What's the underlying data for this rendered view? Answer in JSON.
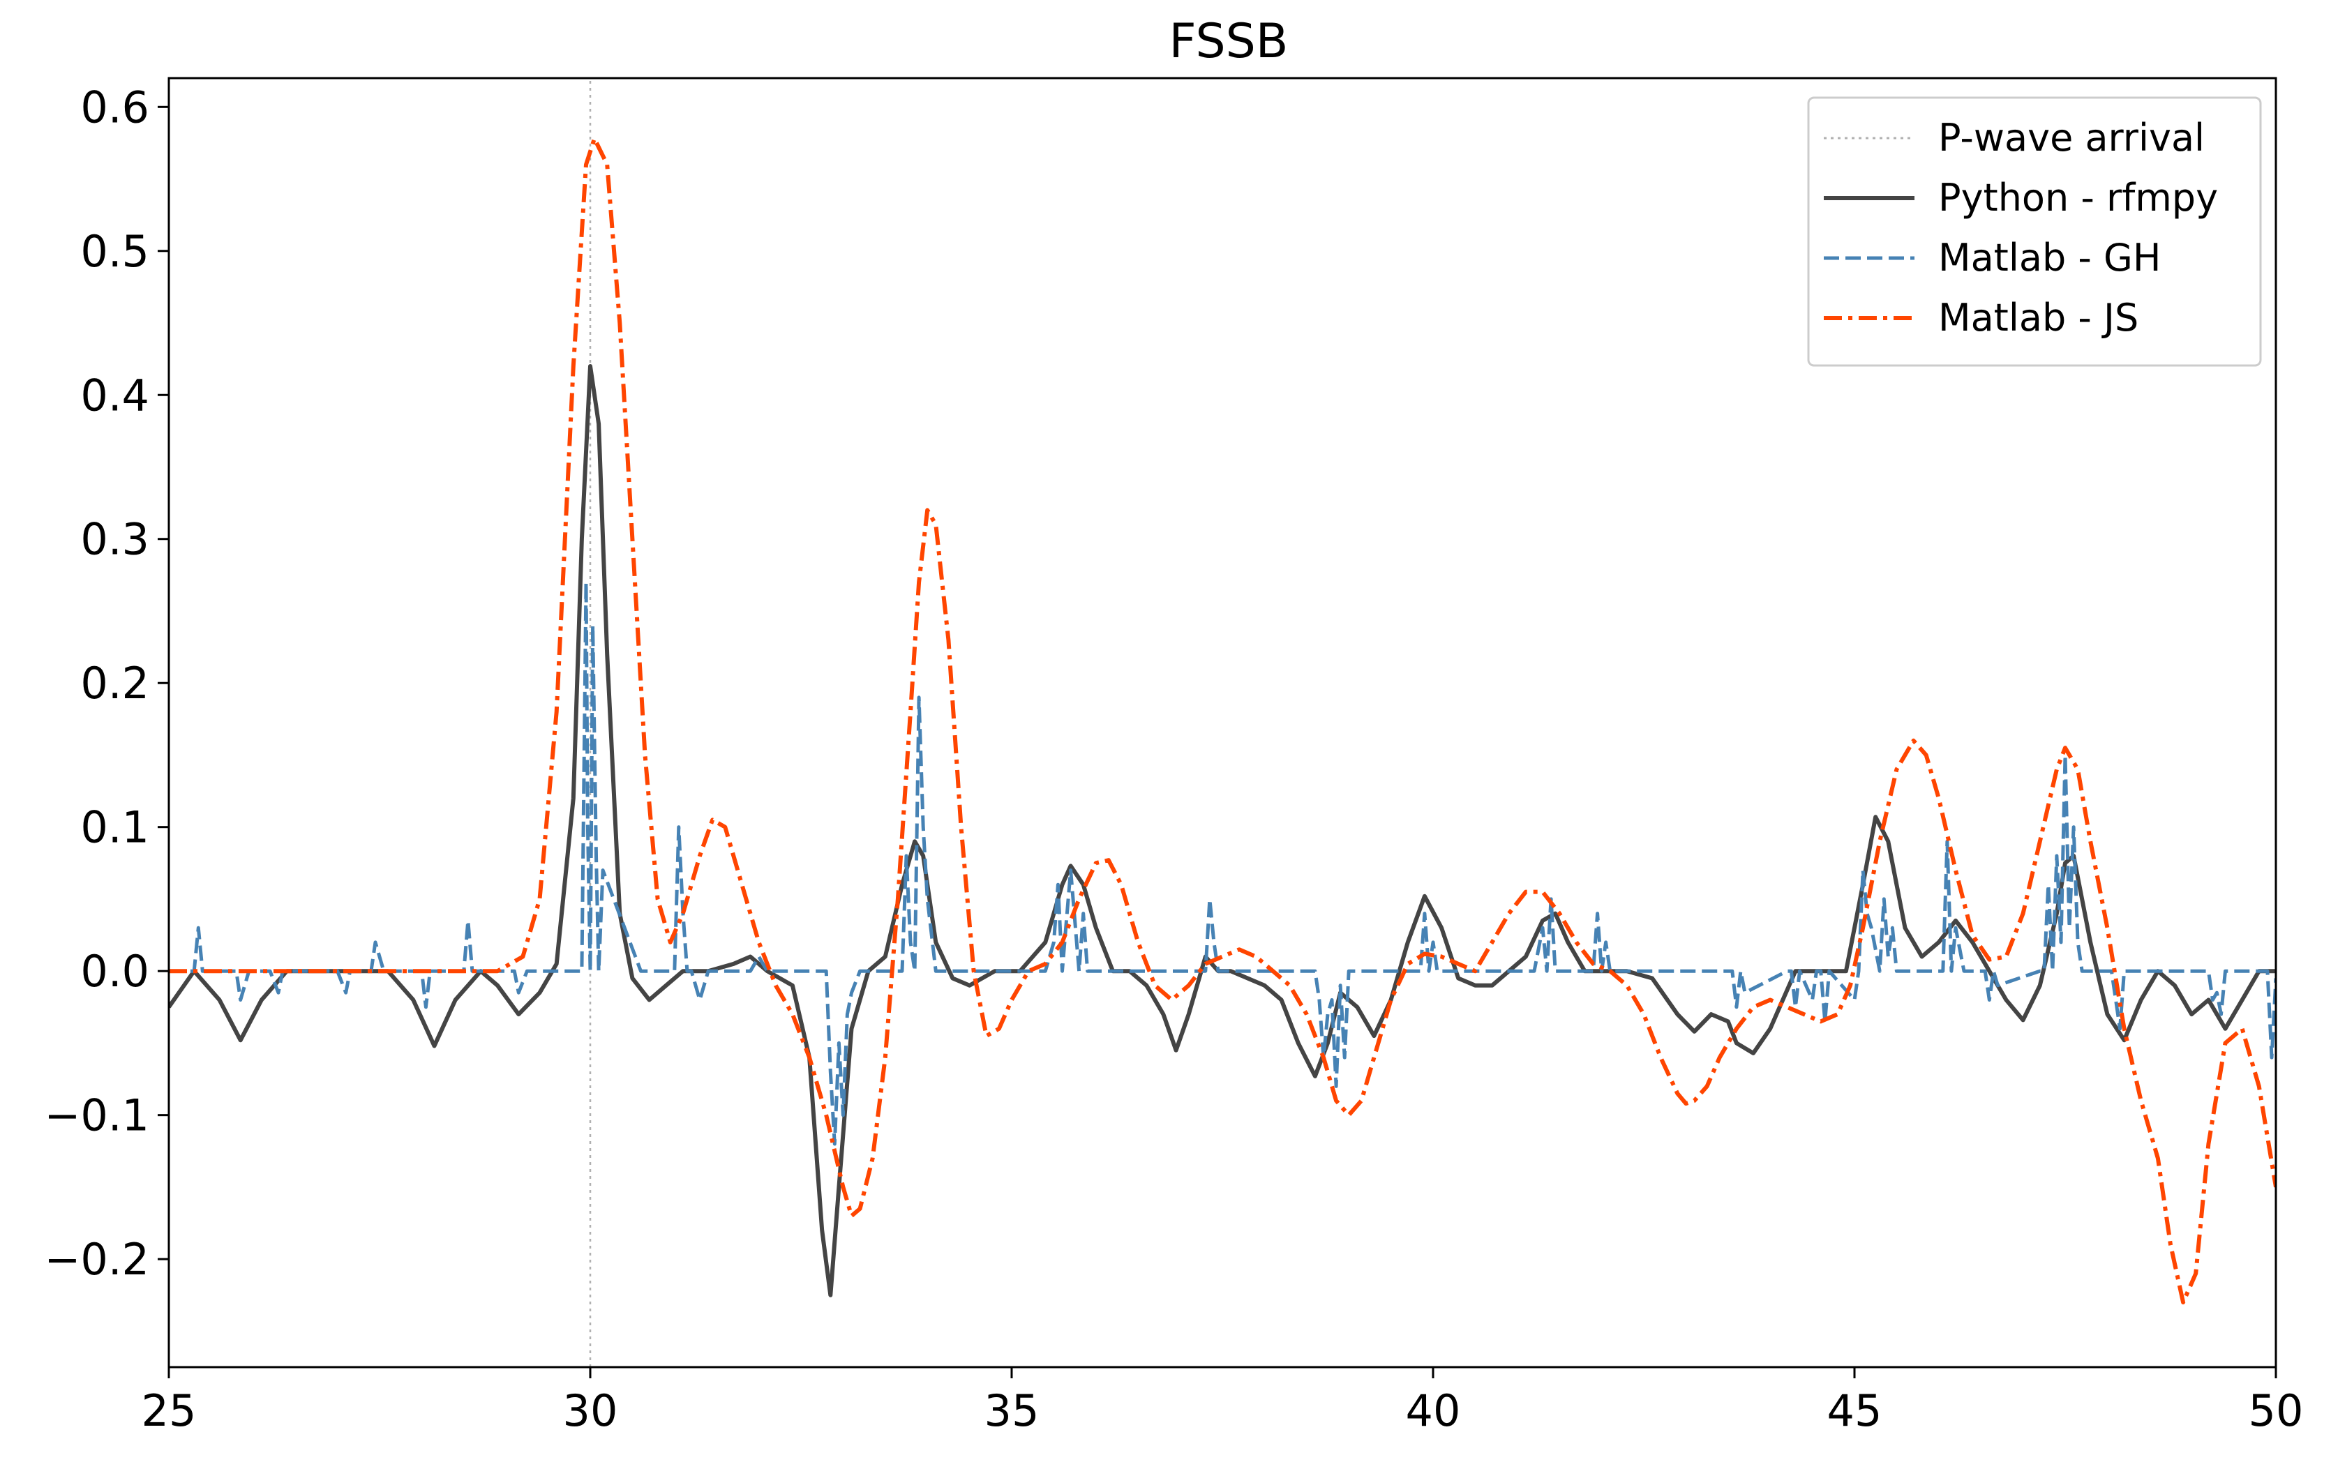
{
  "chart_data": {
    "type": "line",
    "title": "FSSB",
    "xlabel": "",
    "ylabel": "",
    "xlim": [
      25,
      50
    ],
    "ylim": [
      -0.275,
      0.62
    ],
    "x_ticks": [
      25,
      30,
      35,
      40,
      45,
      50
    ],
    "x_tick_labels": [
      "25",
      "30",
      "35",
      "40",
      "45",
      "50"
    ],
    "y_ticks": [
      -0.2,
      -0.1,
      0.0,
      0.1,
      0.2,
      0.3,
      0.4,
      0.5,
      0.6
    ],
    "y_tick_labels": [
      "−0.2",
      "−0.1",
      "0.0",
      "0.1",
      "0.2",
      "0.3",
      "0.4",
      "0.5",
      "0.6"
    ],
    "grid": false,
    "legend_position": "top-right",
    "p_wave_arrival": 30,
    "series": [
      {
        "name": "P-wave arrival",
        "color": "#b0b0b0",
        "style": "dotted",
        "x": [
          30,
          30
        ],
        "y": [
          -0.275,
          0.62
        ]
      },
      {
        "name": "Python - rfmpy",
        "color": "#444444",
        "style": "solid",
        "x": [
          25.0,
          25.3,
          25.6,
          25.85,
          26.1,
          26.4,
          26.8,
          27.2,
          27.6,
          27.9,
          28.15,
          28.4,
          28.7,
          28.9,
          29.15,
          29.4,
          29.6,
          29.8,
          29.9,
          30.0,
          30.1,
          30.2,
          30.35,
          30.5,
          30.7,
          30.9,
          31.1,
          31.4,
          31.7,
          31.9,
          32.1,
          32.4,
          32.6,
          32.75,
          32.85,
          32.95,
          33.1,
          33.3,
          33.5,
          33.7,
          33.85,
          33.95,
          34.1,
          34.3,
          34.5,
          34.8,
          35.1,
          35.4,
          35.6,
          35.7,
          35.85,
          36.0,
          36.2,
          36.4,
          36.6,
          36.8,
          36.95,
          37.1,
          37.3,
          37.45,
          37.6,
          37.8,
          38.0,
          38.2,
          38.4,
          38.6,
          38.75,
          38.9,
          39.1,
          39.3,
          39.5,
          39.7,
          39.9,
          40.1,
          40.3,
          40.5,
          40.7,
          40.9,
          41.1,
          41.3,
          41.45,
          41.6,
          41.8,
          42.0,
          42.3,
          42.6,
          42.9,
          43.1,
          43.3,
          43.5,
          43.6,
          43.8,
          44.0,
          44.3,
          44.6,
          44.9,
          45.1,
          45.25,
          45.4,
          45.6,
          45.8,
          46.0,
          46.2,
          46.4,
          46.6,
          46.8,
          47.0,
          47.2,
          47.4,
          47.5,
          47.6,
          47.8,
          48.0,
          48.2,
          48.4,
          48.6,
          48.8,
          49.0,
          49.2,
          49.4,
          49.6,
          49.8,
          50.0
        ],
        "y": [
          -0.025,
          0.0,
          -0.02,
          -0.048,
          -0.02,
          0.0,
          0.0,
          0.0,
          0.0,
          -0.02,
          -0.052,
          -0.02,
          0.0,
          -0.01,
          -0.03,
          -0.015,
          0.005,
          0.12,
          0.3,
          0.42,
          0.38,
          0.22,
          0.04,
          -0.005,
          -0.02,
          -0.01,
          0.0,
          0.0,
          0.005,
          0.01,
          0.0,
          -0.01,
          -0.06,
          -0.18,
          -0.225,
          -0.15,
          -0.04,
          0.0,
          0.01,
          0.06,
          0.09,
          0.08,
          0.02,
          -0.005,
          -0.01,
          0.0,
          0.0,
          0.02,
          0.06,
          0.073,
          0.06,
          0.03,
          0.0,
          0.0,
          -0.01,
          -0.03,
          -0.055,
          -0.03,
          0.01,
          0.0,
          0.0,
          -0.005,
          -0.01,
          -0.02,
          -0.05,
          -0.073,
          -0.05,
          -0.015,
          -0.025,
          -0.045,
          -0.02,
          0.02,
          0.052,
          0.03,
          -0.005,
          -0.01,
          -0.01,
          0.0,
          0.01,
          0.035,
          0.04,
          0.02,
          0.0,
          0.0,
          0.0,
          -0.005,
          -0.03,
          -0.042,
          -0.03,
          -0.035,
          -0.05,
          -0.057,
          -0.04,
          0.0,
          0.0,
          0.0,
          0.06,
          0.107,
          0.09,
          0.03,
          0.01,
          0.02,
          0.035,
          0.02,
          0.0,
          -0.02,
          -0.034,
          -0.01,
          0.04,
          0.075,
          0.08,
          0.02,
          -0.03,
          -0.048,
          -0.02,
          0.0,
          -0.01,
          -0.03,
          -0.02,
          -0.04,
          -0.02,
          0.0,
          0.0
        ],
        "line_width": 6
      },
      {
        "name": "Matlab - GH",
        "color": "#4682b4",
        "style": "dashed",
        "x": [
          25.0,
          25.3,
          25.35,
          25.4,
          25.5,
          25.8,
          25.85,
          25.95,
          26.2,
          26.3,
          26.35,
          27.0,
          27.1,
          27.15,
          27.4,
          27.45,
          27.55,
          28.0,
          28.05,
          28.1,
          28.5,
          28.55,
          28.6,
          28.65,
          29.1,
          29.15,
          29.25,
          29.9,
          29.95,
          29.97,
          30.0,
          30.03,
          30.07,
          30.1,
          30.15,
          30.6,
          31.0,
          31.05,
          31.1,
          31.15,
          31.2,
          31.3,
          31.4,
          31.5,
          31.7,
          31.9,
          32.0,
          32.1,
          32.5,
          32.8,
          32.85,
          32.9,
          32.95,
          33.0,
          33.05,
          33.1,
          33.2,
          33.6,
          33.7,
          33.75,
          33.8,
          33.85,
          33.9,
          33.95,
          34.0,
          34.1,
          34.5,
          35.0,
          35.4,
          35.5,
          35.55,
          35.6,
          35.65,
          35.7,
          35.8,
          35.85,
          35.9,
          36.0,
          37.0,
          37.3,
          37.35,
          37.4,
          37.45,
          37.5,
          38.0,
          38.5,
          38.6,
          38.65,
          38.7,
          38.75,
          38.8,
          38.85,
          38.9,
          38.95,
          39.0,
          39.1,
          39.5,
          39.85,
          39.9,
          39.95,
          40.0,
          40.05,
          40.1,
          40.5,
          41.0,
          41.2,
          41.3,
          41.35,
          41.4,
          41.45,
          41.5,
          41.9,
          41.95,
          42.0,
          42.05,
          42.1,
          43.5,
          43.55,
          43.6,
          43.65,
          43.7,
          44.2,
          44.25,
          44.3,
          44.35,
          44.5,
          44.55,
          44.6,
          44.65,
          44.7,
          45.0,
          45.05,
          45.1,
          45.15,
          45.2,
          45.3,
          45.35,
          45.4,
          45.45,
          45.5,
          46.0,
          46.05,
          46.1,
          46.15,
          46.2,
          46.3,
          46.5,
          46.55,
          46.6,
          46.65,
          46.7,
          47.2,
          47.25,
          47.3,
          47.35,
          47.4,
          47.45,
          47.5,
          47.55,
          47.6,
          47.65,
          47.7,
          47.75,
          48.0,
          48.05,
          48.1,
          48.15,
          48.2,
          49.2,
          49.25,
          49.3,
          49.35,
          49.4,
          49.9,
          49.95,
          50.0
        ],
        "y": [
          0.0,
          0.0,
          0.03,
          0.0,
          0.0,
          0.0,
          -0.02,
          0.0,
          0.0,
          -0.015,
          0.0,
          0.0,
          -0.015,
          0.0,
          0.0,
          0.02,
          0.0,
          0.0,
          -0.025,
          0.0,
          0.0,
          0.035,
          0.0,
          0.0,
          0.0,
          -0.015,
          0.0,
          0.0,
          0.27,
          0.1,
          0.0,
          0.24,
          0.08,
          0.0,
          0.07,
          0.0,
          0.0,
          0.1,
          0.04,
          0.0,
          0.0,
          -0.02,
          0.0,
          0.0,
          0.0,
          0.0,
          0.01,
          0.0,
          0.0,
          0.0,
          -0.07,
          -0.12,
          -0.05,
          -0.1,
          -0.03,
          -0.015,
          0.0,
          0.0,
          0.0,
          0.08,
          0.02,
          0.0,
          0.19,
          0.1,
          0.05,
          0.0,
          0.0,
          0.0,
          0.0,
          0.02,
          0.06,
          0.0,
          0.035,
          0.07,
          0.0,
          0.04,
          0.0,
          0.0,
          0.0,
          0.0,
          0.05,
          0.02,
          0.0,
          0.0,
          0.0,
          0.0,
          0.0,
          -0.02,
          -0.06,
          -0.03,
          -0.02,
          -0.08,
          -0.01,
          -0.06,
          0.0,
          0.0,
          0.0,
          0.0,
          0.04,
          0.0,
          0.02,
          0.0,
          0.0,
          0.0,
          0.0,
          0.0,
          0.03,
          0.0,
          0.05,
          0.0,
          0.0,
          0.0,
          0.04,
          0.0,
          0.02,
          0.0,
          0.0,
          0.0,
          -0.025,
          0.0,
          -0.015,
          0.0,
          0.0,
          -0.025,
          0.0,
          -0.02,
          0.0,
          0.0,
          -0.035,
          0.0,
          -0.02,
          0.0,
          0.07,
          0.04,
          0.03,
          0.0,
          0.05,
          0.01,
          0.03,
          0.0,
          0.0,
          0.0,
          0.09,
          0.0,
          0.03,
          0.0,
          0.0,
          0.0,
          -0.02,
          0.0,
          -0.01,
          0.0,
          0.0,
          0.06,
          0.0,
          0.08,
          0.02,
          0.15,
          0.03,
          0.1,
          0.02,
          0.0,
          0.0,
          0.0,
          0.0,
          -0.02,
          -0.04,
          0.0,
          0.0,
          -0.02,
          -0.015,
          -0.03,
          0.0,
          0.0,
          -0.06,
          -0.005
        ],
        "line_width": 5
      },
      {
        "name": "Matlab - JS",
        "color": "#ff4500",
        "style": "dashdot",
        "x": [
          25.0,
          28.5,
          28.9,
          29.2,
          29.4,
          29.6,
          29.8,
          29.95,
          30.05,
          30.2,
          30.35,
          30.5,
          30.65,
          30.8,
          30.95,
          31.1,
          31.3,
          31.45,
          31.6,
          31.8,
          32.0,
          32.2,
          32.4,
          32.6,
          32.8,
          33.0,
          33.1,
          33.2,
          33.35,
          33.5,
          33.65,
          33.8,
          33.9,
          34.0,
          34.1,
          34.25,
          34.4,
          34.55,
          34.7,
          34.85,
          35.0,
          35.2,
          35.4,
          35.6,
          35.8,
          36.0,
          36.15,
          36.3,
          36.5,
          36.7,
          36.9,
          37.1,
          37.3,
          37.5,
          37.7,
          37.9,
          38.1,
          38.3,
          38.5,
          38.7,
          38.85,
          39.0,
          39.15,
          39.3,
          39.5,
          39.7,
          39.9,
          40.1,
          40.3,
          40.5,
          40.7,
          40.9,
          41.1,
          41.3,
          41.5,
          41.7,
          41.9,
          42.1,
          42.3,
          42.5,
          42.7,
          42.9,
          43.0,
          43.1,
          43.25,
          43.4,
          43.6,
          43.8,
          44.0,
          44.2,
          44.4,
          44.6,
          44.8,
          44.95,
          45.1,
          45.3,
          45.5,
          45.7,
          45.85,
          46.0,
          46.2,
          46.4,
          46.6,
          46.8,
          47.0,
          47.2,
          47.4,
          47.5,
          47.65,
          47.8,
          48.0,
          48.2,
          48.4,
          48.6,
          48.75,
          48.9,
          49.05,
          49.2,
          49.4,
          49.6,
          49.8,
          50.0
        ],
        "y": [
          0.0,
          0.0,
          0.0,
          0.01,
          0.05,
          0.18,
          0.42,
          0.56,
          0.578,
          0.56,
          0.45,
          0.3,
          0.15,
          0.05,
          0.02,
          0.04,
          0.08,
          0.105,
          0.1,
          0.06,
          0.02,
          -0.01,
          -0.03,
          -0.06,
          -0.1,
          -0.15,
          -0.17,
          -0.165,
          -0.13,
          -0.06,
          0.05,
          0.18,
          0.27,
          0.32,
          0.31,
          0.23,
          0.1,
          0.0,
          -0.045,
          -0.04,
          -0.02,
          0.0,
          0.005,
          0.02,
          0.05,
          0.075,
          0.077,
          0.06,
          0.02,
          -0.01,
          -0.02,
          -0.01,
          0.005,
          0.01,
          0.015,
          0.01,
          0.0,
          -0.01,
          -0.03,
          -0.06,
          -0.09,
          -0.1,
          -0.09,
          -0.06,
          -0.02,
          0.005,
          0.012,
          0.01,
          0.005,
          0.0,
          0.02,
          0.04,
          0.055,
          0.055,
          0.04,
          0.02,
          0.005,
          0.0,
          -0.01,
          -0.03,
          -0.06,
          -0.085,
          -0.092,
          -0.09,
          -0.08,
          -0.06,
          -0.04,
          -0.025,
          -0.02,
          -0.025,
          -0.03,
          -0.035,
          -0.03,
          -0.01,
          0.03,
          0.09,
          0.14,
          0.16,
          0.15,
          0.12,
          0.07,
          0.025,
          0.008,
          0.01,
          0.04,
          0.09,
          0.14,
          0.155,
          0.14,
          0.09,
          0.03,
          -0.04,
          -0.09,
          -0.13,
          -0.19,
          -0.23,
          -0.21,
          -0.12,
          -0.05,
          -0.04,
          -0.08,
          -0.15
        ],
        "line_width": 6
      }
    ]
  }
}
